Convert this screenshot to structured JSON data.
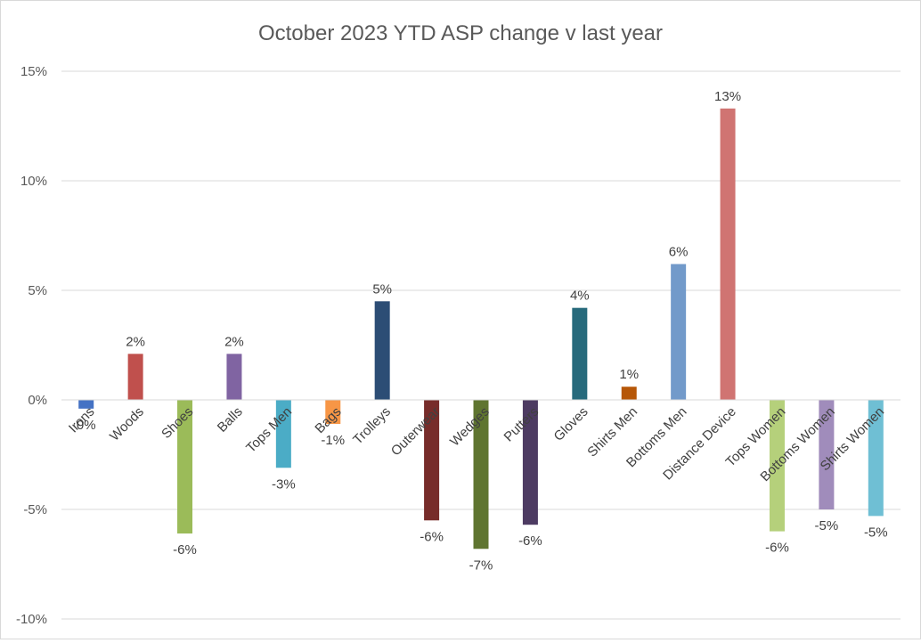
{
  "chart_data": {
    "type": "bar",
    "title": "October 2023 YTD ASP change v last year",
    "xlabel": "",
    "ylabel": "",
    "ylim": [
      -10,
      15
    ],
    "yticks": [
      -10,
      -5,
      0,
      5,
      10,
      15
    ],
    "ytick_labels": [
      "-10%",
      "-5%",
      "0%",
      "5%",
      "10%",
      "15%"
    ],
    "grid": true,
    "legend": "none",
    "categories": [
      "Irons",
      "Woods",
      "Shoes",
      "Balls",
      "Tops Men",
      "Bags",
      "Trolleys",
      "Outerwear",
      "Wedges",
      "Putters",
      "Gloves",
      "Shirts Men",
      "Bottoms Men",
      "Distance Device",
      "Tops Women",
      "Bottoms Women",
      "Shirts Women"
    ],
    "values": [
      -0.4,
      2.1,
      -6.1,
      2.1,
      -3.1,
      -1.1,
      4.5,
      -5.5,
      -6.8,
      -5.7,
      4.2,
      0.6,
      6.2,
      13.3,
      -6.0,
      -5.0,
      -5.3
    ],
    "data_labels": [
      "0%",
      "2%",
      "-6%",
      "2%",
      "-3%",
      "-1%",
      "5%",
      "-6%",
      "-7%",
      "-6%",
      "4%",
      "1%",
      "6%",
      "13%",
      "-6%",
      "-5%",
      "-5%"
    ],
    "colors": [
      "#4472c4",
      "#c0504d",
      "#9bbb59",
      "#8064a2",
      "#4bacc6",
      "#f79646",
      "#2c4d75",
      "#772c2a",
      "#5f7530",
      "#4d3b62",
      "#276a7c",
      "#b65708",
      "#729aca",
      "#d07472",
      "#b5d07b",
      "#a08cbb",
      "#6fbfd4"
    ]
  }
}
